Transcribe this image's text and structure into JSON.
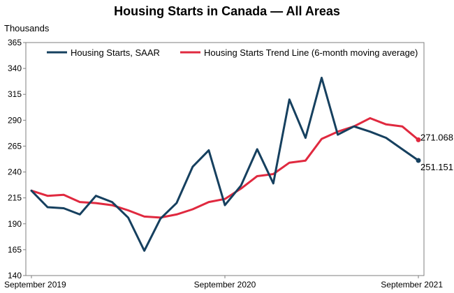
{
  "chart_data": {
    "type": "line",
    "title": "Housing Starts in Canada — All Areas",
    "ylabel": "Thousands",
    "xlabel": "",
    "ylim": [
      140,
      365
    ],
    "yticks": [
      140,
      165,
      190,
      215,
      240,
      265,
      290,
      315,
      340,
      365
    ],
    "x_tick_labels": [
      {
        "label": "September 2019",
        "index": 0
      },
      {
        "label": "September 2020",
        "index": 12
      },
      {
        "label": "September 2021",
        "index": 24
      }
    ],
    "x": [
      "2019-09",
      "2019-10",
      "2019-11",
      "2019-12",
      "2020-01",
      "2020-02",
      "2020-03",
      "2020-04",
      "2020-05",
      "2020-06",
      "2020-07",
      "2020-08",
      "2020-09",
      "2020-10",
      "2020-11",
      "2020-12",
      "2021-01",
      "2021-02",
      "2021-03",
      "2021-04",
      "2021-05",
      "2021-06",
      "2021-07",
      "2021-08",
      "2021-09"
    ],
    "grid": false,
    "legend_position": "top",
    "series": [
      {
        "name": "Housing Starts, SAAR",
        "color": "#16405f",
        "values": [
          222,
          206,
          205,
          199,
          217,
          211,
          196,
          164,
          195,
          210,
          245,
          261,
          208,
          227,
          262,
          229,
          310,
          273,
          331,
          276,
          284,
          279,
          273,
          262,
          251.151
        ],
        "end_label": "251.151"
      },
      {
        "name": "Housing Starts Trend Line (6-month moving average)",
        "color": "#e0293f",
        "values": [
          222,
          217,
          218,
          211,
          210,
          208,
          203,
          197,
          196,
          199,
          204,
          211,
          214,
          224,
          236,
          238,
          249,
          251,
          272,
          279,
          284,
          292,
          286,
          284,
          271.068
        ],
        "end_label": "271.068"
      }
    ]
  }
}
